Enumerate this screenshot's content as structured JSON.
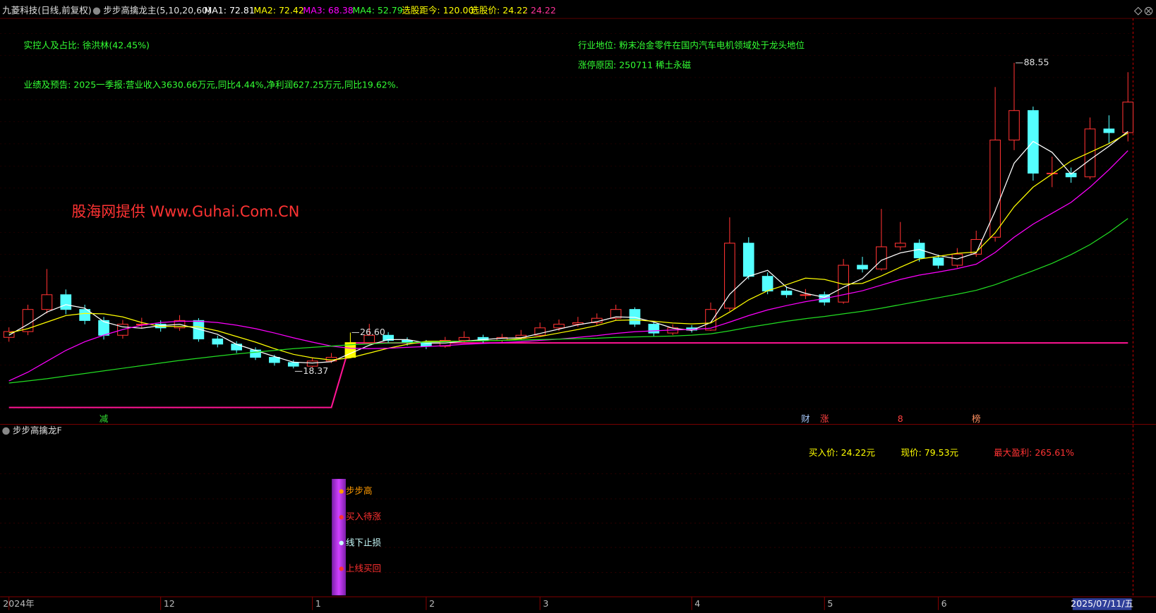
{
  "header": {
    "stock": "九菱科技(日线,前复权)",
    "indicator": "步步高擒龙主(5,10,20,60)",
    "ma1": "MA1: 72.81",
    "ma2": "MA2: 72.42",
    "ma3": "MA3: 68.38",
    "ma4": "MA4: 52.79",
    "days": "选股距今: 120.00",
    "pick_price": "选股价: 24.22",
    "pick_value": ": 24.22"
  },
  "info": {
    "holder": "实控人及占比: 徐洪林(42.45%)",
    "results": "业绩及预告: 2025一季报:营业收入3630.66万元,同比4.44%,净利润627.25万元,同比19.62%.",
    "industry": "行业地位: 粉末冶金零件在国内汽车电机领域处于龙头地位",
    "limit_up": "涨停原因: 250711 稀土永磁",
    "watermark": "股海网提供 Www.Guhai.Com.CN"
  },
  "chart_data": {
    "type": "candlestick",
    "categories": [
      "2024年",
      null,
      null,
      null,
      null,
      null,
      null,
      null,
      "12",
      null,
      null,
      null,
      null,
      null,
      null,
      null,
      "1",
      null,
      null,
      null,
      null,
      null,
      "2",
      null,
      null,
      null,
      null,
      null,
      "3",
      null,
      null,
      null,
      null,
      null,
      null,
      null,
      "4",
      null,
      null,
      null,
      null,
      null,
      null,
      "5",
      null,
      null,
      null,
      null,
      null,
      "6",
      null,
      null,
      null,
      null,
      null,
      null,
      null,
      null,
      null,
      "2025/07/11/五"
    ],
    "open": [
      25.5,
      26.83,
      31.91,
      35.29,
      31.91,
      29.37,
      25.98,
      28.52,
      28.52,
      27.68,
      29.37,
      25.14,
      23.95,
      22.6,
      20.91,
      19.72,
      18.88,
      20.06,
      20.91,
      24.29,
      25.98,
      24.8,
      24.29,
      23.45,
      24.8,
      25.48,
      24.8,
      25.48,
      25.98,
      27.68,
      28.52,
      28.86,
      29.88,
      31.91,
      28.52,
      26.49,
      27.68,
      27.17,
      32.2,
      47.13,
      39.52,
      36.14,
      35.29,
      35.29,
      33.6,
      42.06,
      41.21,
      46.29,
      47.13,
      43.75,
      42.06,
      44.6,
      48.5,
      70.82,
      77.59,
      63.21,
      63.21,
      62.36,
      73.36,
      72.52
    ],
    "high": [
      27.8,
      33.0,
      41.2,
      36.5,
      33.0,
      30.2,
      29.5,
      30.0,
      29.4,
      30.6,
      29.9,
      25.9,
      24.6,
      23.2,
      21.5,
      20.3,
      20.9,
      21.9,
      26.6,
      28.6,
      26.7,
      25.5,
      24.9,
      25.6,
      26.9,
      26.1,
      26.3,
      27.2,
      28.9,
      29.6,
      30.2,
      31.0,
      33.0,
      32.4,
      29.0,
      28.5,
      28.3,
      33.5,
      53.05,
      48.5,
      40.4,
      37.2,
      36.6,
      36.0,
      43.5,
      44.0,
      55.0,
      52.0,
      48.0,
      44.5,
      46.0,
      50.0,
      83.0,
      88.55,
      78.5,
      67.0,
      64.5,
      76.0,
      76.5,
      86.4
    ],
    "low": [
      24.5,
      26.0,
      31.0,
      30.8,
      28.5,
      25.0,
      25.2,
      27.5,
      26.8,
      27.0,
      24.5,
      23.2,
      21.9,
      20.3,
      19.0,
      18.37,
      18.6,
      19.6,
      20.8,
      23.9,
      24.1,
      23.6,
      22.8,
      23.1,
      24.3,
      24.2,
      24.4,
      25.0,
      25.6,
      27.0,
      27.9,
      28.3,
      29.4,
      27.9,
      25.8,
      26.0,
      26.6,
      27.0,
      31.5,
      38.8,
      35.4,
      34.6,
      34.3,
      32.8,
      33.2,
      40.4,
      40.8,
      45.5,
      42.9,
      41.3,
      41.5,
      44.0,
      47.5,
      68.5,
      61.5,
      60.0,
      61.0,
      61.8,
      70.0,
      70.5
    ],
    "close": [
      26.83,
      31.91,
      35.29,
      31.91,
      29.37,
      25.98,
      28.52,
      28.52,
      27.68,
      29.37,
      25.14,
      23.95,
      22.6,
      20.91,
      19.72,
      18.88,
      20.06,
      20.91,
      24.29,
      25.98,
      24.8,
      24.29,
      23.45,
      24.8,
      25.48,
      24.8,
      25.48,
      25.98,
      27.68,
      28.52,
      28.86,
      29.88,
      31.91,
      28.52,
      26.49,
      27.68,
      27.17,
      31.91,
      47.13,
      39.52,
      36.14,
      35.29,
      35.29,
      33.6,
      42.06,
      41.21,
      46.29,
      47.13,
      43.75,
      42.06,
      44.6,
      47.98,
      70.82,
      77.59,
      63.21,
      63.21,
      62.36,
      73.36,
      72.52,
      79.53
    ],
    "up_color": "#ff3232",
    "down_color": "#54ffff",
    "highlight_index": 18,
    "highlight_color": "#ffff00",
    "ylim": [
      5.68,
      98.75
    ],
    "series": [
      {
        "color": "#ffffff",
        "values": [
          26.0,
          28.5,
          31.3,
          33.0,
          32.2,
          29.1,
          27.9,
          27.6,
          28.2,
          28.5,
          27.4,
          26.2,
          23.9,
          22.5,
          21.1,
          19.8,
          19.6,
          19.9,
          21.8,
          23.7,
          25.0,
          25.0,
          24.2,
          24.2,
          24.6,
          25.0,
          25.3,
          25.4,
          26.4,
          27.4,
          28.4,
          29.1,
          30.2,
          30.1,
          29.0,
          27.6,
          27.1,
          28.9,
          35.4,
          39.5,
          40.9,
          37.0,
          35.6,
          34.7,
          37.0,
          39.0,
          43.2,
          44.9,
          45.7,
          44.3,
          43.5,
          44.9,
          54.5,
          65.5,
          70.5,
          68.0,
          63.0,
          66.3,
          69.4,
          72.81
        ]
      },
      {
        "color": "#ffff00",
        "values": [
          26.5,
          27.5,
          29.0,
          30.5,
          31.0,
          30.9,
          30.2,
          28.9,
          28.0,
          28.0,
          27.9,
          27.0,
          25.7,
          24.4,
          22.9,
          21.6,
          20.8,
          20.3,
          20.8,
          21.9,
          23.0,
          23.9,
          24.6,
          24.6,
          24.6,
          24.7,
          24.8,
          25.2,
          25.7,
          26.5,
          27.3,
          28.2,
          29.4,
          29.5,
          29.2,
          28.8,
          28.6,
          28.8,
          31.3,
          34.1,
          36.2,
          37.6,
          39.1,
          38.8,
          37.7,
          37.9,
          39.6,
          41.6,
          43.5,
          44.1,
          44.8,
          45.1,
          49.5,
          55.5,
          60.0,
          63.0,
          66.0,
          68.0,
          70.0,
          72.42
        ]
      },
      {
        "color": "#ff00ff",
        "values": [
          15.5,
          17.5,
          20.0,
          22.5,
          24.5,
          26.0,
          27.3,
          28.3,
          28.9,
          29.2,
          29.2,
          28.9,
          28.3,
          27.5,
          26.5,
          25.4,
          24.4,
          23.5,
          23.0,
          22.9,
          23.0,
          23.2,
          23.4,
          23.6,
          23.9,
          24.1,
          24.3,
          24.5,
          24.8,
          25.1,
          25.5,
          25.9,
          26.4,
          26.8,
          27.0,
          27.2,
          27.3,
          27.6,
          29.0,
          30.5,
          31.8,
          32.8,
          33.7,
          34.4,
          35.3,
          36.2,
          37.5,
          38.8,
          39.8,
          40.5,
          41.3,
          42.3,
          45.0,
          48.5,
          51.5,
          54.0,
          56.5,
          60.0,
          64.0,
          68.38
        ]
      },
      {
        "color": "#22dd22",
        "values": [
          15.0,
          15.5,
          16.0,
          16.6,
          17.2,
          17.8,
          18.4,
          19.0,
          19.6,
          20.2,
          20.7,
          21.2,
          21.7,
          22.1,
          22.5,
          22.9,
          23.2,
          23.5,
          23.8,
          24.0,
          24.2,
          24.3,
          24.4,
          24.5,
          24.6,
          24.7,
          24.8,
          24.9,
          25.0,
          25.1,
          25.2,
          25.3,
          25.5,
          25.6,
          25.7,
          25.8,
          26.0,
          26.3,
          27.0,
          27.8,
          28.5,
          29.2,
          29.8,
          30.3,
          30.9,
          31.5,
          32.2,
          33.0,
          33.8,
          34.6,
          35.4,
          36.3,
          37.6,
          39.2,
          40.8,
          42.5,
          44.5,
          46.8,
          49.6,
          52.79
        ]
      }
    ],
    "signal_line": {
      "color": "#ff1493",
      "values": [
        9.4,
        9.4,
        9.4,
        9.4,
        9.4,
        9.4,
        9.4,
        9.4,
        9.4,
        9.4,
        9.4,
        9.4,
        9.4,
        9.4,
        9.4,
        9.4,
        9.4,
        9.4,
        24.22,
        24.22,
        24.22,
        24.22,
        24.22,
        24.22,
        24.22,
        24.22,
        24.22,
        24.22,
        24.22,
        24.22,
        24.22,
        24.22,
        24.22,
        24.22,
        24.22,
        24.22,
        24.22,
        24.22,
        24.22,
        24.22,
        24.22,
        24.22,
        24.22,
        24.22,
        24.22,
        24.22,
        24.22,
        24.22,
        24.22,
        24.22,
        24.22,
        24.22,
        24.22,
        24.22,
        24.22,
        24.22,
        24.22,
        24.22,
        24.22,
        24.22
      ]
    },
    "annotations": [
      {
        "text": "88.55",
        "index": 53,
        "anchor": "high"
      },
      {
        "text": "18.37",
        "index": 15,
        "anchor": "low"
      },
      {
        "text": "26.60",
        "index": 18,
        "anchor": "high"
      }
    ],
    "events": [
      {
        "text": "减",
        "index": 5,
        "color": "#33dd33"
      },
      {
        "text": "财",
        "index": 42,
        "color": "#aaccff"
      },
      {
        "text": "涨",
        "index": 43,
        "color": "#ff4040"
      },
      {
        "text": "8",
        "index": 47,
        "color": "#ff4040"
      },
      {
        "text": "榜",
        "index": 51,
        "color": "#ff9060"
      }
    ]
  },
  "indicator_panel": {
    "title": "步步高擒龙F",
    "buy_price": "买入价: 24.22元",
    "current_price": "现价: 79.53元",
    "max_profit": "最大盈利: 265.61%",
    "legend": [
      "步步高",
      "买入待涨",
      "线下止损",
      "上线买回"
    ]
  }
}
